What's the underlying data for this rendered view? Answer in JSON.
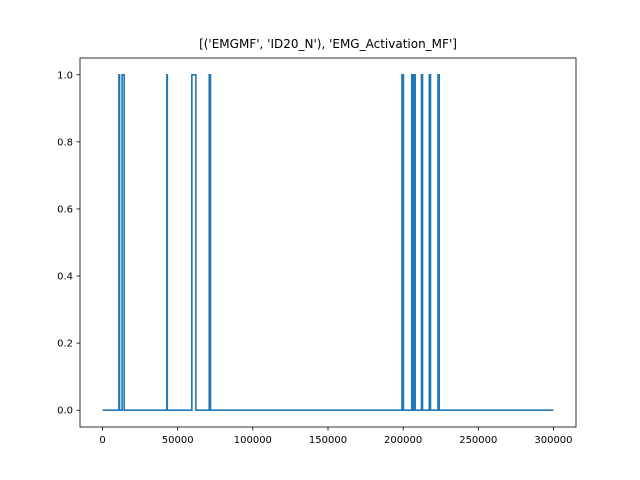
{
  "chart_data": {
    "type": "line",
    "title": "[('EMGMF', 'ID20_N'), 'EMG_Activation_MF']",
    "xlabel": "",
    "ylabel": "",
    "xlim": [
      -15000,
      315000
    ],
    "ylim": [
      -0.05,
      1.05
    ],
    "x_ticks": [
      0,
      50000,
      100000,
      150000,
      200000,
      250000,
      300000
    ],
    "x_tick_labels": [
      "0",
      "50000",
      "100000",
      "150000",
      "200000",
      "250000",
      "300000"
    ],
    "y_ticks": [
      0.0,
      0.2,
      0.4,
      0.6,
      0.8,
      1.0
    ],
    "y_tick_labels": [
      "0.0",
      "0.2",
      "0.4",
      "0.6",
      "0.8",
      "1.0"
    ],
    "grid": false,
    "legend": "none",
    "series": [
      {
        "color": "#1f77b4",
        "x": [
          0,
          10900,
          10900,
          11300,
          11300,
          13000,
          13000,
          14400,
          14400,
          42800,
          42800,
          43100,
          43100,
          59400,
          59400,
          62100,
          62100,
          71000,
          71000,
          71800,
          71800,
          199200,
          199200,
          200200,
          200200,
          205700,
          205700,
          206600,
          206600,
          207200,
          207200,
          208000,
          208000,
          212200,
          212200,
          212900,
          212900,
          217400,
          217400,
          218200,
          218200,
          223200,
          223200,
          224000,
          224000,
          300000
        ],
        "y": [
          0,
          0,
          1,
          1,
          0,
          0,
          1,
          1,
          0,
          0,
          1,
          1,
          0,
          0,
          1,
          1,
          0,
          0,
          1,
          1,
          0,
          0,
          1,
          1,
          0,
          0,
          1,
          1,
          0,
          0,
          1,
          1,
          0,
          0,
          1,
          1,
          0,
          0,
          1,
          1,
          0,
          0,
          1,
          1,
          0,
          0
        ]
      }
    ]
  }
}
